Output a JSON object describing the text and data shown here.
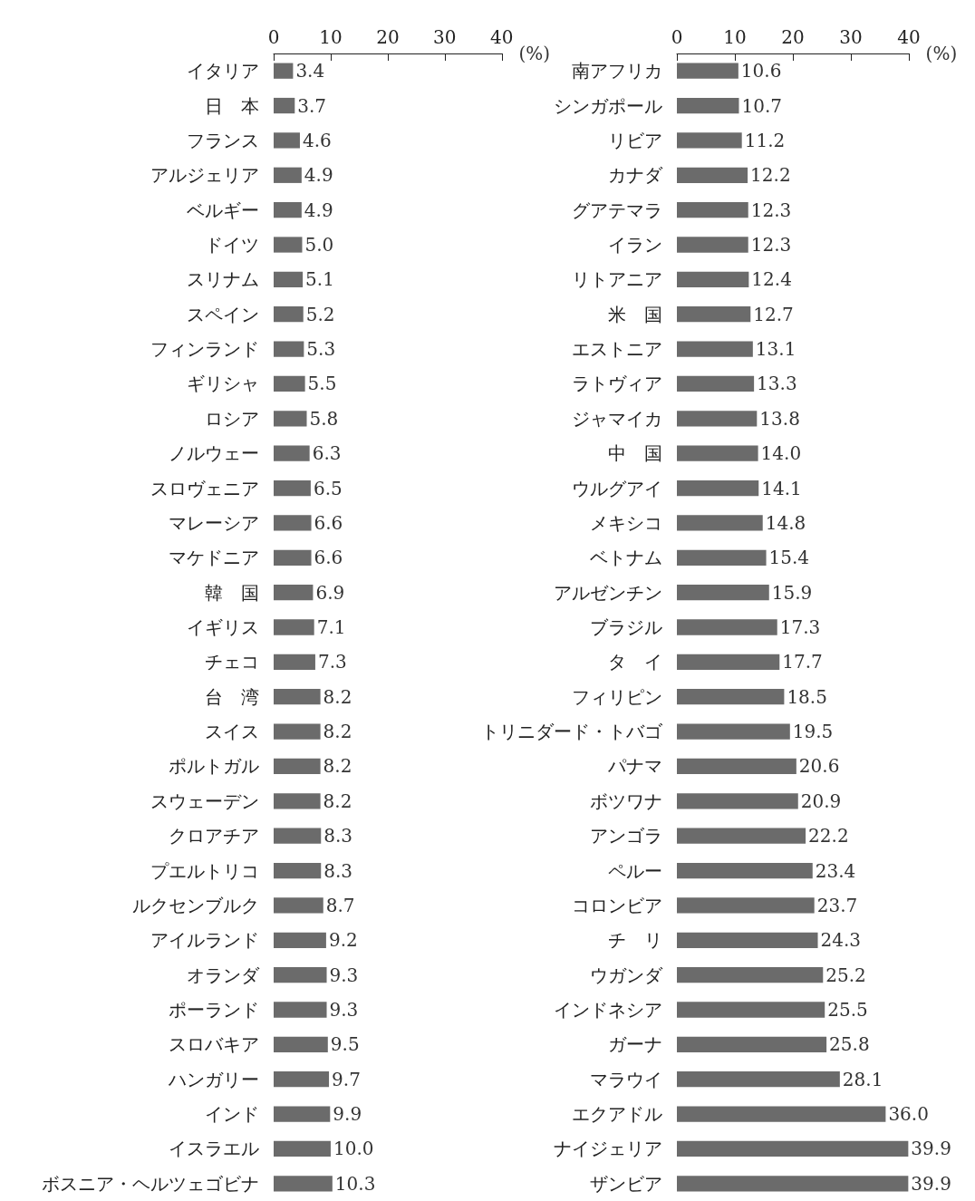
{
  "chart_data": [
    {
      "type": "bar",
      "orientation": "horizontal",
      "xlabel": "(%)",
      "xlim": [
        0,
        40
      ],
      "xticks": [
        0,
        10,
        20,
        30,
        40
      ],
      "color": "#6b6b6b",
      "categories": [
        "イタリア",
        "日　本",
        "フランス",
        "アルジェリア",
        "ベルギー",
        "ドイツ",
        "スリナム",
        "スペイン",
        "フィンランド",
        "ギリシャ",
        "ロシア",
        "ノルウェー",
        "スロヴェニア",
        "マレーシア",
        "マケドニア",
        "韓　国",
        "イギリス",
        "チェコ",
        "台　湾",
        "スイス",
        "ポルトガル",
        "スウェーデン",
        "クロアチア",
        "プエルトリコ",
        "ルクセンブルク",
        "アイルランド",
        "オランダ",
        "ポーランド",
        "スロバキア",
        "ハンガリー",
        "インド",
        "イスラエル",
        "ボスニア・ヘルツェゴビナ"
      ],
      "values": [
        3.4,
        3.7,
        4.6,
        4.9,
        4.9,
        5.0,
        5.1,
        5.2,
        5.3,
        5.5,
        5.8,
        6.3,
        6.5,
        6.6,
        6.6,
        6.9,
        7.1,
        7.3,
        8.2,
        8.2,
        8.2,
        8.2,
        8.3,
        8.3,
        8.7,
        9.2,
        9.3,
        9.3,
        9.5,
        9.7,
        9.9,
        10.0,
        10.3
      ],
      "value_labels": [
        "3.4",
        "3.7",
        "4.6",
        "4.9",
        "4.9",
        "5.0",
        "5.1",
        "5.2",
        "5.3",
        "5.5",
        "5.8",
        "6.3",
        "6.5",
        "6.6",
        "6.6",
        "6.9",
        "7.1",
        "7.3",
        "8.2",
        "8.2",
        "8.2",
        "8.2",
        "8.3",
        "8.3",
        "8.7",
        "9.2",
        "9.3",
        "9.3",
        "9.5",
        "9.7",
        "9.9",
        "10.0",
        "10.3"
      ]
    },
    {
      "type": "bar",
      "orientation": "horizontal",
      "xlabel": "(%)",
      "xlim": [
        0,
        40
      ],
      "xticks": [
        0,
        10,
        20,
        30,
        40
      ],
      "color": "#6b6b6b",
      "categories": [
        "南アフリカ",
        "シンガポール",
        "リビア",
        "カナダ",
        "グアテマラ",
        "イラン",
        "リトアニア",
        "米　国",
        "エストニア",
        "ラトヴィア",
        "ジャマイカ",
        "中　国",
        "ウルグアイ",
        "メキシコ",
        "ベトナム",
        "アルゼンチン",
        "ブラジル",
        "タ　イ",
        "フィリピン",
        "トリニダード・トバゴ",
        "パナマ",
        "ボツワナ",
        "アンゴラ",
        "ペルー",
        "コロンビア",
        "チ　リ",
        "ウガンダ",
        "インドネシア",
        "ガーナ",
        "マラウイ",
        "エクアドル",
        "ナイジェリア",
        "ザンビア"
      ],
      "values": [
        10.6,
        10.7,
        11.2,
        12.2,
        12.3,
        12.3,
        12.4,
        12.7,
        13.1,
        13.3,
        13.8,
        14.0,
        14.1,
        14.8,
        15.4,
        15.9,
        17.3,
        17.7,
        18.5,
        19.5,
        20.6,
        20.9,
        22.2,
        23.4,
        23.7,
        24.3,
        25.2,
        25.5,
        25.8,
        28.1,
        36.0,
        39.9,
        39.9
      ],
      "value_labels": [
        "10.6",
        "10.7",
        "11.2",
        "12.2",
        "12.3",
        "12.3",
        "12.4",
        "12.7",
        "13.1",
        "13.3",
        "13.8",
        "14.0",
        "14.1",
        "14.8",
        "15.4",
        "15.9",
        "17.3",
        "17.7",
        "18.5",
        "19.5",
        "20.6",
        "20.9",
        "22.2",
        "23.4",
        "23.7",
        "24.3",
        "25.2",
        "25.5",
        "25.8",
        "28.1",
        "36.0",
        "39.9",
        "39.9"
      ]
    }
  ]
}
